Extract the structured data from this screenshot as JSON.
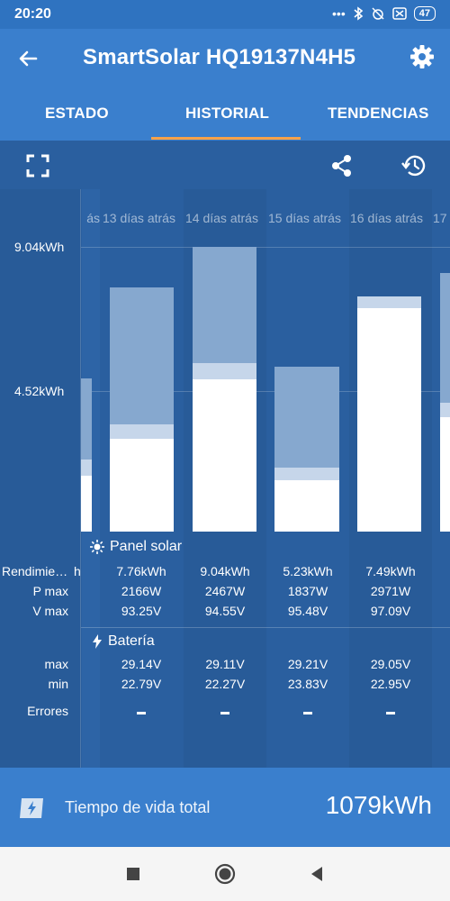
{
  "status": {
    "time": "20:20",
    "battery": "47",
    "signal_glyph": "•••"
  },
  "appbar": {
    "title": "SmartSolar HQ19137N4H5"
  },
  "tabs": [
    {
      "label": "ESTADO"
    },
    {
      "label": "HISTORIAL"
    },
    {
      "label": "TENDENCIAS"
    }
  ],
  "days": [
    "ás",
    "13 días atrás",
    "14 días atrás",
    "15 días atrás",
    "16 días atrás",
    "17"
  ],
  "axis": {
    "top": "9.04kWh",
    "mid": "4.52kWh"
  },
  "chart_data": {
    "type": "bar",
    "categories": [
      "13 días atrás",
      "14 días atrás",
      "15 días atrás",
      "16 días atrás"
    ],
    "yield_kwh": [
      7.76,
      9.04,
      5.23,
      7.49
    ],
    "ylim": [
      0,
      9.04
    ]
  },
  "panel": {
    "title": "Panel solar",
    "rows": [
      {
        "label": "Rendimie…",
        "partial": "h",
        "values": [
          "7.76kWh",
          "9.04kWh",
          "5.23kWh",
          "7.49kWh"
        ]
      },
      {
        "label": "P max",
        "values": [
          "2166W",
          "2467W",
          "1837W",
          "2971W"
        ]
      },
      {
        "label": "V max",
        "values": [
          "93.25V",
          "94.55V",
          "95.48V",
          "97.09V"
        ]
      }
    ]
  },
  "battery_section": {
    "title": "Batería",
    "rows": [
      {
        "label": "max",
        "values": [
          "29.14V",
          "29.11V",
          "29.21V",
          "29.05V"
        ]
      },
      {
        "label": "min",
        "values": [
          "22.79V",
          "22.27V",
          "23.83V",
          "22.95V"
        ]
      }
    ]
  },
  "errors": {
    "label": "Errores"
  },
  "footer": {
    "label": "Tiempo de vida total",
    "value": "1079kWh"
  },
  "colors": {
    "header": "#3a7fcd",
    "chart_bg": "#2a5f9f",
    "accent": "#f6a24a"
  }
}
